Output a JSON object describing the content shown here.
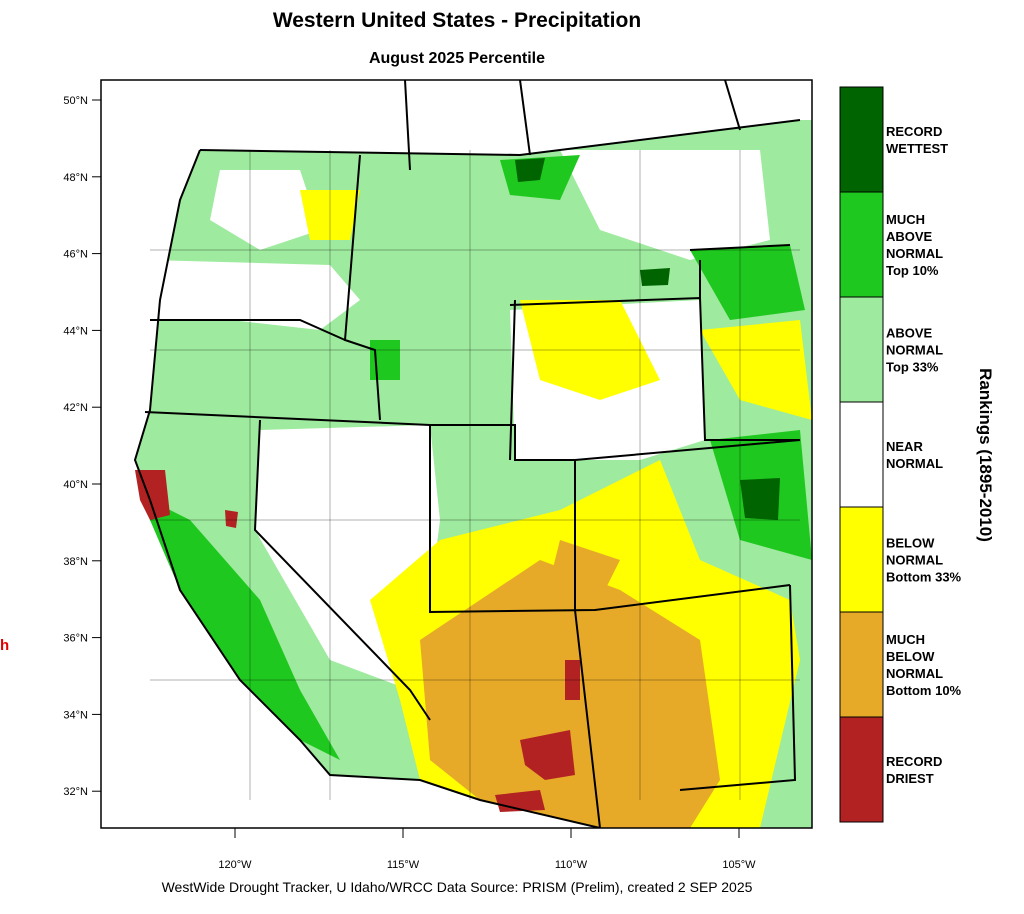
{
  "header": {
    "title": "Western United States - Precipitation",
    "subtitle": "August 2025 Percentile"
  },
  "map": {
    "lat_ticks": [
      {
        "value": 50,
        "label": "50°N"
      },
      {
        "value": 48,
        "label": "48°N"
      },
      {
        "value": 46,
        "label": "46°N"
      },
      {
        "value": 44,
        "label": "44°N"
      },
      {
        "value": 42,
        "label": "42°N"
      },
      {
        "value": 40,
        "label": "40°N"
      },
      {
        "value": 38,
        "label": "38°N"
      },
      {
        "value": 36,
        "label": "36°N"
      },
      {
        "value": 34,
        "label": "34°N"
      },
      {
        "value": 32,
        "label": "32°N"
      }
    ],
    "lon_ticks": [
      {
        "value": -120,
        "label": "120°W"
      },
      {
        "value": -115,
        "label": "115°W"
      },
      {
        "value": -110,
        "label": "110°W"
      },
      {
        "value": -105,
        "label": "105°W"
      }
    ]
  },
  "legend": {
    "title": "Rankings (1895-2010)",
    "items": [
      {
        "lines": [
          "RECORD",
          "WETTEST"
        ],
        "color": "#006400"
      },
      {
        "lines": [
          "MUCH",
          "ABOVE",
          "NORMAL",
          "Top 10%"
        ],
        "color": "#1ec81e"
      },
      {
        "lines": [
          "ABOVE",
          "NORMAL",
          "Top 33%"
        ],
        "color": "#9eea9e"
      },
      {
        "lines": [
          "NEAR",
          "NORMAL"
        ],
        "color": "#ffffff"
      },
      {
        "lines": [
          "BELOW",
          "NORMAL",
          "Bottom 33%"
        ],
        "color": "#ffff00"
      },
      {
        "lines": [
          "MUCH",
          "BELOW",
          "NORMAL",
          "Bottom 10%"
        ],
        "color": "#e6aa28"
      },
      {
        "lines": [
          "RECORD",
          "DRIEST"
        ],
        "color": "#b22222"
      }
    ]
  },
  "footer": "WestWide Drought Tracker, U Idaho/WRCC Data Source: PRISM (Prelim), created  2 SEP 2025",
  "edge_text": "h"
}
